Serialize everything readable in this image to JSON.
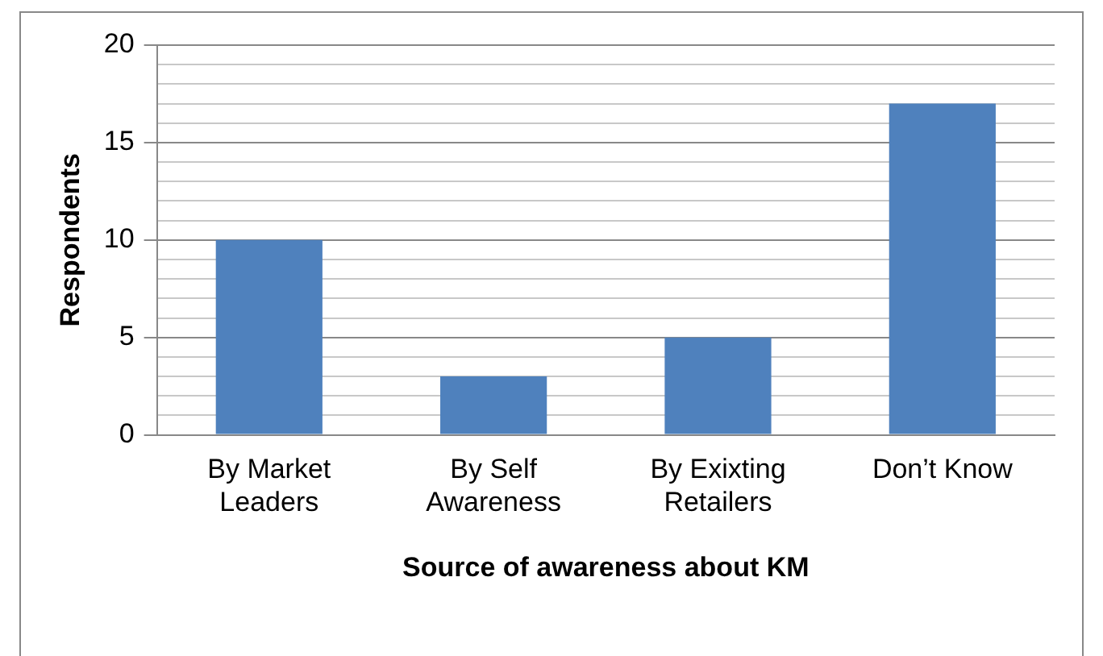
{
  "chart_data": {
    "type": "bar",
    "xlabel": "Source of awareness about KM",
    "ylabel": "Respondents",
    "categories": [
      "By Market Leaders",
      "By Self Awareness",
      "By Exixting Retailers",
      "Don’t Know"
    ],
    "values": [
      10,
      3,
      5,
      17
    ],
    "color": "#4f81bd",
    "ylim": [
      0,
      20
    ],
    "yticks": [
      0,
      {
        "value": 1,
        "label": null
      },
      {
        "value": 2,
        "label": null
      },
      {
        "value": 3,
        "label": null
      },
      {
        "value": 4,
        "label": null
      },
      5,
      {
        "value": 6,
        "label": null
      },
      {
        "value": 7,
        "label": null
      },
      {
        "value": 8,
        "label": null
      },
      {
        "value": 9,
        "label": null
      },
      10,
      {
        "value": 11,
        "label": null
      },
      {
        "value": 12,
        "label": null
      },
      {
        "value": 13,
        "label": null
      },
      {
        "value": 14,
        "label": null
      },
      15,
      {
        "value": 16,
        "label": null
      },
      {
        "value": 17,
        "label": null
      },
      {
        "value": 18,
        "label": null
      },
      {
        "value": 19,
        "label": null
      },
      20
    ],
    "grid": "y",
    "legend": false
  }
}
